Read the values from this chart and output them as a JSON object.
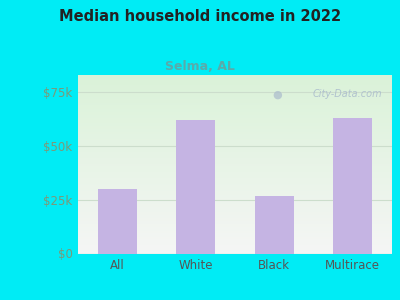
{
  "title": "Median household income in 2022",
  "subtitle": "Selma, AL",
  "categories": [
    "All",
    "White",
    "Black",
    "Multirace"
  ],
  "values": [
    30200,
    62000,
    26800,
    63000
  ],
  "bar_color": "#c5b4e3",
  "background_color": "#00ecf5",
  "plot_bg_top": "#daf2d8",
  "plot_bg_bottom": "#f5f5f5",
  "title_color": "#222222",
  "subtitle_color": "#5aaaaa",
  "ytick_color": "#7a9a7a",
  "xtick_color": "#555555",
  "ytick_labels": [
    "$0",
    "$25k",
    "$50k",
    "$75k"
  ],
  "ytick_values": [
    0,
    25000,
    50000,
    75000
  ],
  "ylim": [
    0,
    83000
  ],
  "watermark": "City-Data.com",
  "watermark_color": "#aabbcc",
  "grid_color": "#ccddcc"
}
